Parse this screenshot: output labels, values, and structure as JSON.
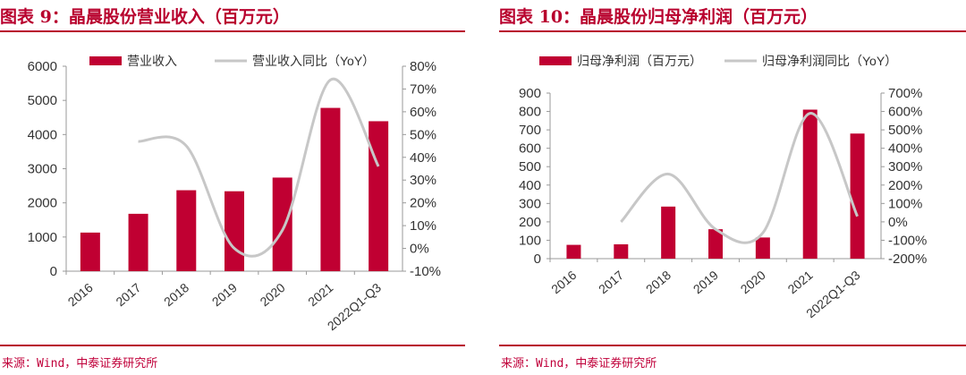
{
  "chart_data": [
    {
      "type": "bar",
      "title": "图表 9：晶晨股份营业收入（百万元）",
      "categories": [
        "2016",
        "2017",
        "2018",
        "2019",
        "2020",
        "2021",
        "2022Q1-Q3"
      ],
      "series": [
        {
          "name": "营业收入",
          "type": "bar",
          "axis": "left",
          "values": [
            1130,
            1680,
            2370,
            2340,
            2740,
            4780,
            4390
          ]
        },
        {
          "name": "营业收入同比（YoY）",
          "type": "line",
          "axis": "right",
          "values": [
            null,
            47,
            45,
            0,
            8,
            74,
            36
          ]
        }
      ],
      "y_left": {
        "min": 0,
        "max": 6000,
        "ticks": [
          "0",
          "1000",
          "2000",
          "3000",
          "4000",
          "5000",
          "6000"
        ]
      },
      "y_right": {
        "min": -10,
        "max": 80,
        "ticks": [
          "-10%",
          "0%",
          "10%",
          "20%",
          "30%",
          "40%",
          "50%",
          "60%",
          "70%",
          "80%"
        ]
      },
      "legend": "top",
      "grid": false,
      "colors": {
        "bar": "#c00032",
        "line": "#c7c7c7"
      },
      "source": "来源：Wind，中泰证券研究所"
    },
    {
      "type": "bar",
      "title": "图表 10：晶晨股份归母净利润（百万元）",
      "categories": [
        "2016",
        "2017",
        "2018",
        "2019",
        "2020",
        "2021",
        "2022Q1-Q3"
      ],
      "series": [
        {
          "name": "归母净利润（百万元）",
          "type": "bar",
          "axis": "left",
          "values": [
            75,
            78,
            283,
            160,
            115,
            810,
            680
          ]
        },
        {
          "name": "归母净利润同比（YoY）",
          "type": "line",
          "axis": "right",
          "values": [
            null,
            0,
            260,
            -40,
            -60,
            590,
            30
          ]
        }
      ],
      "y_left": {
        "min": 0,
        "max": 900,
        "ticks": [
          "0",
          "100",
          "200",
          "300",
          "400",
          "500",
          "600",
          "700",
          "800",
          "900"
        ]
      },
      "y_right": {
        "min": -200,
        "max": 700,
        "ticks": [
          "-200%",
          "-100%",
          "0%",
          "100%",
          "200%",
          "300%",
          "400%",
          "500%",
          "600%",
          "700%"
        ]
      },
      "legend": "top",
      "grid": false,
      "colors": {
        "bar": "#c00032",
        "line": "#c7c7c7"
      },
      "source": "来源：Wind，中泰证券研究所"
    }
  ]
}
